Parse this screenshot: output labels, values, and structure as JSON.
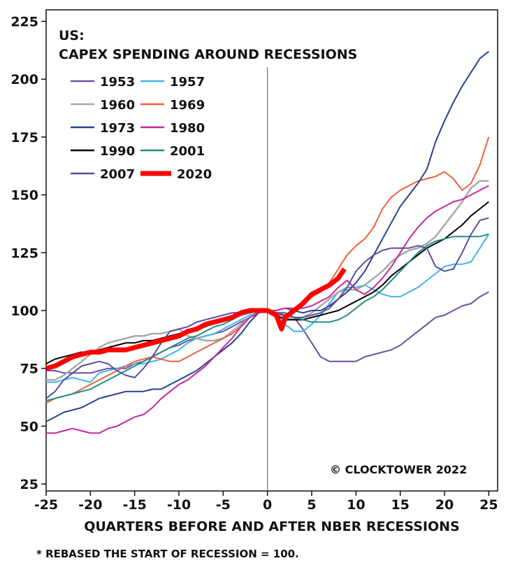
{
  "chart_data": {
    "type": "line",
    "title_line1": "US:",
    "title_line2": "CAPEX SPENDING AROUND RECESSIONS",
    "xlabel": "QUARTERS BEFORE AND AFTER NBER RECESSIONS",
    "footnote": "* REBASED THE START OF RECESSION = 100.",
    "credit": "© CLOCKTOWER 2022",
    "xlim": [
      -25,
      26
    ],
    "ylim": [
      22,
      230
    ],
    "x_ticks": [
      -25,
      -20,
      -15,
      -10,
      -5,
      0,
      5,
      10,
      15,
      20,
      25
    ],
    "x_tick_labels": [
      "-25",
      "-20",
      "-15",
      "-10",
      "-5",
      "0",
      "5",
      "10",
      "15",
      "20",
      "25"
    ],
    "y_ticks": [
      25,
      50,
      75,
      100,
      125,
      150,
      175,
      200,
      225
    ],
    "y_tick_labels": [
      "25",
      "50",
      "75",
      "100",
      "125",
      "150",
      "175",
      "200",
      "225"
    ],
    "grid": false,
    "vertical_reference_x": 0,
    "legend_position": "top-left",
    "series": [
      {
        "name": "1953",
        "color": "#6b4fa0",
        "width": 2,
        "x": [
          -25,
          -24,
          -23,
          -22,
          -21,
          -20,
          -19,
          -18,
          -17,
          -16,
          -15,
          -14,
          -13,
          -12,
          -11,
          -10,
          -9,
          -8,
          -7,
          -6,
          -5,
          -4,
          -3,
          -2,
          -1,
          0,
          1,
          2,
          3,
          4,
          5,
          6,
          7,
          8,
          9,
          10,
          11,
          12,
          13,
          14,
          15,
          16,
          17,
          18,
          19,
          20,
          21,
          22,
          23,
          24,
          25
        ],
        "y": [
          74,
          74,
          73,
          73,
          73,
          73,
          74,
          75,
          75,
          75,
          77,
          78,
          80,
          82,
          84,
          85,
          87,
          88,
          89,
          90,
          91,
          93,
          95,
          97,
          99,
          100,
          99,
          99,
          97,
          92,
          86,
          80,
          78,
          78,
          78,
          78,
          80,
          81,
          82,
          83,
          85,
          88,
          91,
          94,
          97,
          98,
          100,
          102,
          103,
          106,
          108
        ]
      },
      {
        "name": "1957",
        "color": "#3fb5ea",
        "width": 2,
        "x": [
          -25,
          -24,
          -23,
          -22,
          -21,
          -20,
          -19,
          -18,
          -17,
          -16,
          -15,
          -14,
          -13,
          -12,
          -11,
          -10,
          -9,
          -8,
          -7,
          -6,
          -5,
          -4,
          -3,
          -2,
          -1,
          0,
          1,
          2,
          3,
          4,
          5,
          6,
          7,
          8,
          9,
          10,
          11,
          12,
          13,
          14,
          15,
          16,
          17,
          18,
          19,
          20,
          21,
          22,
          23,
          24,
          25
        ],
        "y": [
          69,
          69,
          70,
          71,
          70,
          69,
          73,
          74,
          75,
          76,
          77,
          77,
          78,
          79,
          81,
          83,
          86,
          88,
          89,
          90,
          92,
          94,
          96,
          98,
          99,
          100,
          98,
          94,
          91,
          91,
          94,
          98,
          103,
          108,
          110,
          110,
          111,
          109,
          107,
          106,
          106,
          108,
          110,
          113,
          116,
          119,
          120,
          120,
          121,
          127,
          133
        ]
      },
      {
        "name": "1960",
        "color": "#a8a8a8",
        "width": 2.5,
        "x": [
          -25,
          -24,
          -23,
          -22,
          -21,
          -20,
          -19,
          -18,
          -17,
          -16,
          -15,
          -14,
          -13,
          -12,
          -11,
          -10,
          -9,
          -8,
          -7,
          -6,
          -5,
          -4,
          -3,
          -2,
          -1,
          0,
          1,
          2,
          3,
          4,
          5,
          6,
          7,
          8,
          9,
          10,
          11,
          12,
          13,
          14,
          15,
          16,
          17,
          18,
          19,
          20,
          21,
          22,
          23,
          24,
          25
        ],
        "y": [
          70,
          70,
          72,
          75,
          78,
          81,
          84,
          86,
          87,
          88,
          89,
          89,
          90,
          90,
          91,
          92,
          89,
          88,
          87,
          87,
          88,
          91,
          94,
          97,
          99,
          100,
          99,
          97,
          96,
          97,
          99,
          102,
          105,
          108,
          109,
          109,
          111,
          114,
          117,
          121,
          124,
          126,
          127,
          129,
          132,
          137,
          142,
          147,
          153,
          156,
          156
        ]
      },
      {
        "name": "1969",
        "color": "#f0603a",
        "width": 2,
        "x": [
          -25,
          -24,
          -23,
          -22,
          -21,
          -20,
          -19,
          -18,
          -17,
          -16,
          -15,
          -14,
          -13,
          -12,
          -11,
          -10,
          -9,
          -8,
          -7,
          -6,
          -5,
          -4,
          -3,
          -2,
          -1,
          0,
          1,
          2,
          3,
          4,
          5,
          6,
          7,
          8,
          9,
          10,
          11,
          12,
          13,
          14,
          15,
          16,
          17,
          18,
          19,
          20,
          21,
          22,
          23,
          24,
          25
        ],
        "y": [
          60,
          62,
          63,
          64,
          66,
          68,
          70,
          72,
          74,
          76,
          78,
          79,
          80,
          79,
          78,
          78,
          80,
          82,
          84,
          86,
          88,
          90,
          93,
          97,
          99,
          100,
          98,
          98,
          100,
          104,
          106,
          108,
          112,
          118,
          124,
          128,
          131,
          136,
          144,
          149,
          152,
          154,
          156,
          157,
          158,
          160,
          157,
          152,
          155,
          163,
          175
        ]
      },
      {
        "name": "1973",
        "color": "#24428f",
        "width": 2,
        "x": [
          -25,
          -24,
          -23,
          -22,
          -21,
          -20,
          -19,
          -18,
          -17,
          -16,
          -15,
          -14,
          -13,
          -12,
          -11,
          -10,
          -9,
          -8,
          -7,
          -6,
          -5,
          -4,
          -3,
          -2,
          -1,
          0,
          1,
          2,
          3,
          4,
          5,
          6,
          7,
          8,
          9,
          10,
          11,
          12,
          13,
          14,
          15,
          16,
          17,
          18,
          19,
          20,
          21,
          22,
          23,
          24,
          25
        ],
        "y": [
          52,
          54,
          56,
          57,
          58,
          60,
          62,
          63,
          64,
          65,
          65,
          65,
          66,
          66,
          68,
          70,
          72,
          74,
          77,
          80,
          83,
          86,
          90,
          95,
          99,
          100,
          100,
          101,
          100,
          99,
          100,
          100,
          102,
          105,
          108,
          112,
          117,
          124,
          131,
          138,
          145,
          150,
          155,
          161,
          173,
          182,
          190,
          197,
          203,
          209,
          212
        ]
      },
      {
        "name": "1980",
        "color": "#c8279b",
        "width": 2,
        "x": [
          -25,
          -24,
          -23,
          -22,
          -21,
          -20,
          -19,
          -18,
          -17,
          -16,
          -15,
          -14,
          -13,
          -12,
          -11,
          -10,
          -9,
          -8,
          -7,
          -6,
          -5,
          -4,
          -3,
          -2,
          -1,
          0,
          1,
          2,
          3,
          4,
          5,
          6,
          7,
          8,
          9,
          10,
          11,
          12,
          13,
          14,
          15,
          16,
          17,
          18,
          19,
          20,
          21,
          22,
          23,
          24,
          25
        ],
        "y": [
          47,
          47,
          48,
          49,
          48,
          47,
          47,
          49,
          50,
          52,
          54,
          55,
          58,
          62,
          65,
          68,
          70,
          73,
          76,
          80,
          84,
          88,
          93,
          97,
          99,
          100,
          100,
          101,
          101,
          101,
          102,
          104,
          106,
          110,
          113,
          109,
          107,
          110,
          114,
          119,
          125,
          131,
          136,
          140,
          143,
          145,
          147,
          148,
          150,
          152,
          154
        ]
      },
      {
        "name": "1990",
        "color": "#000000",
        "width": 2,
        "x": [
          -25,
          -24,
          -23,
          -22,
          -21,
          -20,
          -19,
          -18,
          -17,
          -16,
          -15,
          -14,
          -13,
          -12,
          -11,
          -10,
          -9,
          -8,
          -7,
          -6,
          -5,
          -4,
          -3,
          -2,
          -1,
          0,
          1,
          2,
          3,
          4,
          5,
          6,
          7,
          8,
          9,
          10,
          11,
          12,
          13,
          14,
          15,
          16,
          17,
          18,
          19,
          20,
          21,
          22,
          23,
          24,
          25
        ],
        "y": [
          77,
          79,
          80,
          81,
          82,
          82,
          83,
          84,
          85,
          86,
          86,
          87,
          87,
          88,
          89,
          90,
          91,
          92,
          93,
          95,
          96,
          97,
          98,
          99,
          100,
          100,
          98,
          96,
          96,
          96,
          97,
          98,
          99,
          100,
          102,
          104,
          106,
          108,
          111,
          115,
          118,
          121,
          124,
          127,
          129,
          131,
          134,
          137,
          141,
          144,
          147
        ]
      },
      {
        "name": "2001",
        "color": "#1f8f80",
        "width": 2,
        "x": [
          -25,
          -24,
          -23,
          -22,
          -21,
          -20,
          -19,
          -18,
          -17,
          -16,
          -15,
          -14,
          -13,
          -12,
          -11,
          -10,
          -9,
          -8,
          -7,
          -6,
          -5,
          -4,
          -3,
          -2,
          -1,
          0,
          1,
          2,
          3,
          4,
          5,
          6,
          7,
          8,
          9,
          10,
          11,
          12,
          13,
          14,
          15,
          16,
          17,
          18,
          19,
          20,
          21,
          22,
          23,
          24,
          25
        ],
        "y": [
          61,
          62,
          63,
          64,
          65,
          66,
          68,
          70,
          72,
          74,
          76,
          78,
          80,
          82,
          84,
          86,
          88,
          89,
          91,
          93,
          94,
          96,
          98,
          99,
          100,
          100,
          99,
          98,
          97,
          96,
          95,
          95,
          95,
          96,
          98,
          101,
          104,
          106,
          109,
          113,
          117,
          121,
          125,
          128,
          130,
          131,
          132,
          132,
          132,
          132,
          133
        ]
      },
      {
        "name": "2007",
        "color": "#5a4ca0",
        "width": 2,
        "x": [
          -25,
          -24,
          -23,
          -22,
          -21,
          -20,
          -19,
          -18,
          -17,
          -16,
          -15,
          -14,
          -13,
          -12,
          -11,
          -10,
          -9,
          -8,
          -7,
          -6,
          -5,
          -4,
          -3,
          -2,
          -1,
          0,
          1,
          2,
          3,
          4,
          5,
          6,
          7,
          8,
          9,
          10,
          11,
          12,
          13,
          14,
          15,
          16,
          17,
          18,
          19,
          20,
          21,
          22,
          23,
          24,
          25
        ],
        "y": [
          62,
          65,
          70,
          73,
          76,
          77,
          78,
          77,
          74,
          72,
          71,
          75,
          80,
          86,
          91,
          92,
          93,
          95,
          96,
          97,
          98,
          99,
          99,
          100,
          100,
          100,
          99,
          98,
          97,
          97,
          98,
          99,
          101,
          105,
          110,
          117,
          121,
          124,
          126,
          127,
          127,
          127,
          128,
          127,
          119,
          117,
          118,
          125,
          133,
          139,
          140
        ]
      },
      {
        "name": "2020",
        "color": "#ff0000",
        "width": 7,
        "x": [
          -25,
          -24,
          -23,
          -22,
          -21,
          -20,
          -19,
          -18,
          -17,
          -16,
          -15,
          -14,
          -13,
          -12,
          -11,
          -10,
          -9,
          -8,
          -7,
          -6,
          -5,
          -4,
          -3,
          -2,
          -1,
          0,
          1,
          1.6,
          2,
          3,
          4,
          5,
          6,
          7,
          8,
          8.7
        ],
        "y": [
          75,
          76,
          78,
          80,
          81,
          82,
          82,
          83,
          83,
          83,
          84,
          85,
          86,
          87,
          88,
          89,
          91,
          92,
          94,
          95,
          96,
          97,
          99,
          100,
          100,
          100,
          98,
          92,
          97,
          100,
          103,
          107,
          109,
          111,
          114,
          118
        ]
      }
    ]
  }
}
